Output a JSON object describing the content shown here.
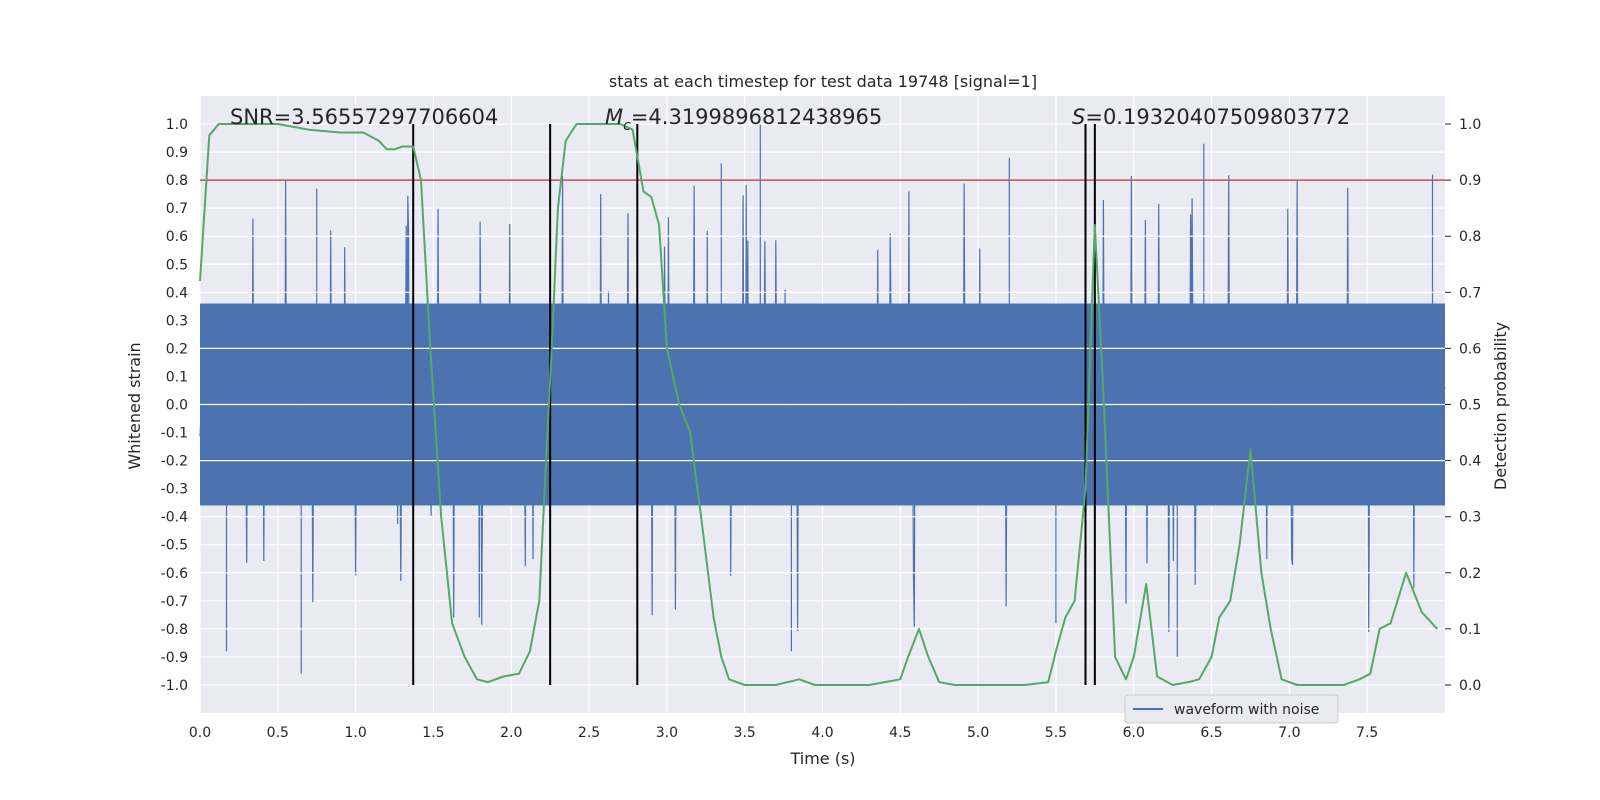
{
  "chart_data": {
    "type": "line",
    "title": "stats at each timestep for test data 19748 [signal=1]",
    "xlabel": "Time (s)",
    "ylabel_left": "Whitened strain",
    "ylabel_right": "Detection probability",
    "xlim": [
      0.0,
      8.0
    ],
    "ylim_left": [
      -1.1,
      1.1
    ],
    "ylim_right": [
      -0.05,
      1.05
    ],
    "x_ticks": [
      "0.0",
      "0.5",
      "1.0",
      "1.5",
      "2.0",
      "2.5",
      "3.0",
      "3.5",
      "4.0",
      "4.5",
      "5.0",
      "5.5",
      "6.0",
      "6.5",
      "7.0",
      "7.5"
    ],
    "y_ticks_left": [
      "1.0",
      "0.9",
      "0.8",
      "0.7",
      "0.6",
      "0.5",
      "0.4",
      "0.3",
      "0.2",
      "0.1",
      "0.0",
      "-0.1",
      "-0.2",
      "-0.3",
      "-0.4",
      "-0.5",
      "-0.6",
      "-0.7",
      "-0.8",
      "-0.9",
      "-1.0"
    ],
    "y_ticks_right": [
      "1.0",
      "0.9",
      "0.8",
      "0.7",
      "0.6",
      "0.5",
      "0.4",
      "0.3",
      "0.2",
      "0.1",
      "0.0"
    ],
    "grid": true,
    "annotations": {
      "snr": "SNR=3.56557297706604",
      "mc_symbol": "M",
      "mc_sub": "c",
      "mc_value": "=4.3199896812438965",
      "s_symbol": "S",
      "s_value": "=0.19320407509803772"
    },
    "threshold": {
      "value": 0.9,
      "axis": "right",
      "color": "#c44e52"
    },
    "vertical_lines": {
      "x": [
        1.37,
        2.25,
        2.81,
        5.69,
        5.75
      ],
      "color": "#000000"
    },
    "series": [
      {
        "name": "waveform with noise",
        "axis": "left",
        "color": "#4c72b0",
        "style": "noise",
        "envelope": {
          "min": -0.96,
          "max": 1.0
        },
        "spikes": [
          {
            "t": 0.65,
            "v": -0.96
          },
          {
            "t": 0.17,
            "v": -0.88
          },
          {
            "t": 3.6,
            "v": 1.0
          },
          {
            "t": 6.45,
            "v": 0.93
          },
          {
            "t": 3.35,
            "v": 0.86
          },
          {
            "t": 5.2,
            "v": 0.88
          },
          {
            "t": 7.92,
            "v": 0.82
          },
          {
            "t": 6.28,
            "v": -0.9
          },
          {
            "t": 3.8,
            "v": -0.88
          },
          {
            "t": 5.5,
            "v": -0.78
          },
          {
            "t": 0.75,
            "v": 0.77
          }
        ]
      },
      {
        "name": "detection probability",
        "axis": "right",
        "color": "#55a868",
        "x": [
          0.0,
          0.06,
          0.12,
          0.3,
          0.5,
          0.7,
          0.9,
          1.05,
          1.15,
          1.2,
          1.25,
          1.3,
          1.37,
          1.42,
          1.48,
          1.55,
          1.62,
          1.7,
          1.78,
          1.85,
          1.95,
          2.05,
          2.12,
          2.18,
          2.22,
          2.26,
          2.3,
          2.35,
          2.42,
          2.5,
          2.6,
          2.7,
          2.78,
          2.85,
          2.9,
          2.95,
          3.0,
          3.08,
          3.15,
          3.22,
          3.3,
          3.35,
          3.4,
          3.5,
          3.7,
          3.85,
          3.95,
          4.1,
          4.3,
          4.5,
          4.55,
          4.62,
          4.68,
          4.75,
          4.85,
          4.95,
          5.1,
          5.3,
          5.45,
          5.5,
          5.56,
          5.62,
          5.69,
          5.75,
          5.8,
          5.88,
          5.95,
          6.0,
          6.08,
          6.15,
          6.25,
          6.35,
          6.42,
          6.5,
          6.55,
          6.62,
          6.68,
          6.75,
          6.82,
          6.88,
          6.95,
          7.05,
          7.2,
          7.35,
          7.45,
          7.52,
          7.58,
          7.65,
          7.75,
          7.85,
          7.95
        ],
        "values": [
          0.72,
          0.98,
          1.0,
          1.0,
          1.0,
          0.99,
          0.985,
          0.985,
          0.97,
          0.955,
          0.955,
          0.96,
          0.96,
          0.9,
          0.6,
          0.3,
          0.11,
          0.05,
          0.01,
          0.005,
          0.015,
          0.02,
          0.06,
          0.15,
          0.38,
          0.6,
          0.85,
          0.97,
          1.0,
          1.0,
          1.0,
          1.0,
          0.99,
          0.88,
          0.87,
          0.82,
          0.6,
          0.5,
          0.45,
          0.3,
          0.12,
          0.05,
          0.01,
          0.0,
          0.0,
          0.01,
          0.0,
          0.0,
          0.0,
          0.01,
          0.05,
          0.1,
          0.05,
          0.005,
          0.0,
          0.0,
          0.0,
          0.0,
          0.005,
          0.06,
          0.12,
          0.15,
          0.35,
          0.82,
          0.55,
          0.05,
          0.01,
          0.05,
          0.18,
          0.015,
          0.0,
          0.005,
          0.01,
          0.05,
          0.12,
          0.15,
          0.25,
          0.42,
          0.2,
          0.1,
          0.01,
          0.0,
          0.0,
          0.0,
          0.01,
          0.02,
          0.1,
          0.11,
          0.2,
          0.13,
          0.1
        ]
      }
    ],
    "legend": {
      "label": "waveform with noise",
      "location": "lower right"
    }
  }
}
